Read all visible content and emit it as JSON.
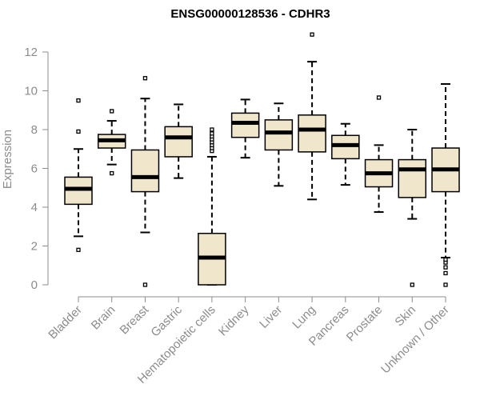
{
  "chart_data": {
    "type": "boxplot",
    "title": "ENSG00000128536 - CDHR3",
    "xlabel": "",
    "ylabel": "Expression",
    "ylim": [
      0,
      12
    ],
    "yticks": [
      0,
      2,
      4,
      6,
      8,
      10,
      12
    ],
    "categories": [
      "Bladder",
      "Brain",
      "Breast",
      "Gastric",
      "Hematopoietic cells",
      "Kidney",
      "Liver",
      "Lung",
      "Pancreas",
      "Prostate",
      "Skin",
      "Unknown / Other"
    ],
    "boxes": [
      {
        "min": 2.5,
        "q1": 4.15,
        "median": 4.95,
        "q3": 5.55,
        "max": 7.0,
        "outliers": [
          1.8,
          7.9,
          9.5
        ]
      },
      {
        "min": 6.2,
        "q1": 7.05,
        "median": 7.45,
        "q3": 7.75,
        "max": 8.45,
        "outliers": [
          5.75,
          8.95
        ]
      },
      {
        "min": 2.7,
        "q1": 4.8,
        "median": 5.55,
        "q3": 6.95,
        "max": 9.6,
        "outliers": [
          0.0,
          10.65
        ]
      },
      {
        "min": 5.5,
        "q1": 6.6,
        "median": 7.6,
        "q3": 8.15,
        "max": 9.3,
        "outliers": []
      },
      {
        "min": 0.0,
        "q1": 0.0,
        "median": 1.4,
        "q3": 2.65,
        "max": 6.6,
        "outliers": [
          6.9,
          7.05,
          7.2,
          7.35,
          7.5,
          7.65,
          7.8,
          8.0
        ]
      },
      {
        "min": 6.55,
        "q1": 7.6,
        "median": 8.35,
        "q3": 8.85,
        "max": 9.55,
        "outliers": []
      },
      {
        "min": 5.1,
        "q1": 6.95,
        "median": 7.85,
        "q3": 8.5,
        "max": 9.35,
        "outliers": []
      },
      {
        "min": 4.4,
        "q1": 6.85,
        "median": 8.0,
        "q3": 8.75,
        "max": 11.5,
        "outliers": [
          12.9
        ]
      },
      {
        "min": 5.15,
        "q1": 6.5,
        "median": 7.2,
        "q3": 7.7,
        "max": 8.3,
        "outliers": []
      },
      {
        "min": 3.75,
        "q1": 5.05,
        "median": 5.75,
        "q3": 6.45,
        "max": 7.2,
        "outliers": [
          9.65
        ]
      },
      {
        "min": 3.4,
        "q1": 4.5,
        "median": 5.95,
        "q3": 6.45,
        "max": 8.0,
        "outliers": [
          0.0
        ]
      },
      {
        "min": 1.4,
        "q1": 4.8,
        "median": 5.95,
        "q3": 7.05,
        "max": 10.35,
        "outliers": [
          0.0,
          0.6,
          0.9,
          1.15,
          1.3
        ]
      }
    ],
    "colors": {
      "box_fill": "#efe6cc",
      "box_stroke": "#000000",
      "median": "#000000",
      "axis": "#8c8c8c"
    },
    "grid": false,
    "legend": "none"
  }
}
